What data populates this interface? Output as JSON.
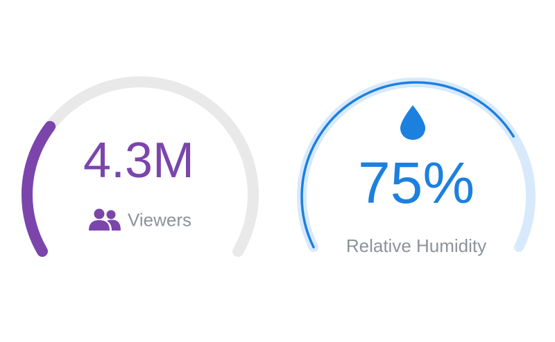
{
  "gauges": {
    "viewers": {
      "value": "4.3M",
      "label": "Viewers",
      "icon": "people-icon",
      "fill_fraction": 0.28,
      "color_accent": "#7b45ac",
      "color_track": "#e9e9e9"
    },
    "humidity": {
      "value": "75%",
      "label": "Relative Humidity",
      "icon": "water-drop-icon",
      "fill_fraction": 0.75,
      "color_accent": "#1c80df",
      "color_track": "#d8e9fc"
    }
  }
}
